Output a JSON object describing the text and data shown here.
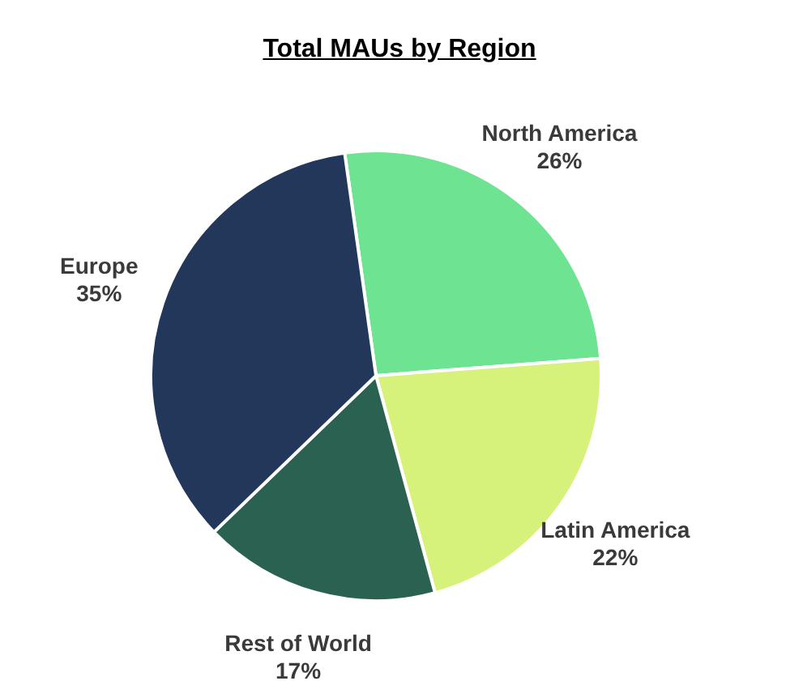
{
  "chart_data": {
    "type": "pie",
    "title": "Total MAUs by Region",
    "categories": [
      "North America",
      "Latin America",
      "Rest of World",
      "Europe"
    ],
    "values": [
      26,
      22,
      17,
      35
    ],
    "value_labels": [
      "26%",
      "22%",
      "17%",
      "35%"
    ],
    "colors": [
      "#6ee391",
      "#d6f27a",
      "#2b6150",
      "#22375a"
    ],
    "legend": false
  }
}
